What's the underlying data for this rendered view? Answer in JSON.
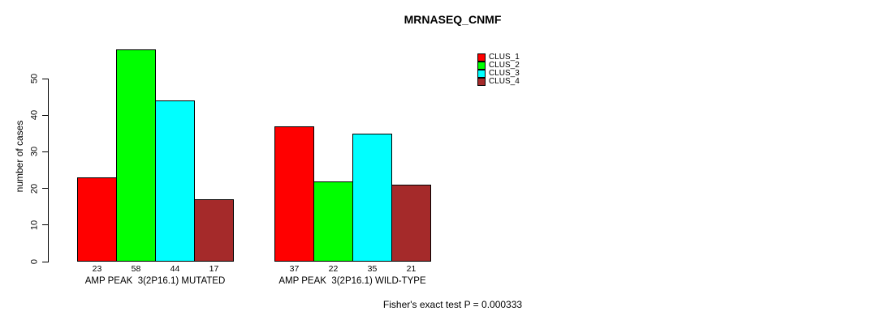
{
  "chart_data": {
    "type": "bar",
    "title": "MRNASEQ_CNMF",
    "ylabel": "number of cases",
    "xlabel": "",
    "yticks": [
      0,
      10,
      20,
      30,
      40,
      50
    ],
    "ylim": [
      0,
      58
    ],
    "grid": false,
    "legend_position": "top-right",
    "bar_border_color": "#000000",
    "background_color": "#ffffff",
    "groups": [
      {
        "label": "AMP PEAK  3(2P16.1) MUTATED",
        "values": [
          23,
          58,
          44,
          17
        ]
      },
      {
        "label": "AMP PEAK  3(2P16.1) WILD-TYPE",
        "values": [
          37,
          22,
          35,
          21
        ]
      }
    ],
    "series": [
      {
        "name": "CLUS_1",
        "color": "#ff0000"
      },
      {
        "name": "CLUS_2",
        "color": "#00ff00"
      },
      {
        "name": "CLUS_3",
        "color": "#00ffff"
      },
      {
        "name": "CLUS_4",
        "color": "#a52a2a"
      }
    ],
    "footnote": "Fisher's exact test P = 0.000333"
  }
}
